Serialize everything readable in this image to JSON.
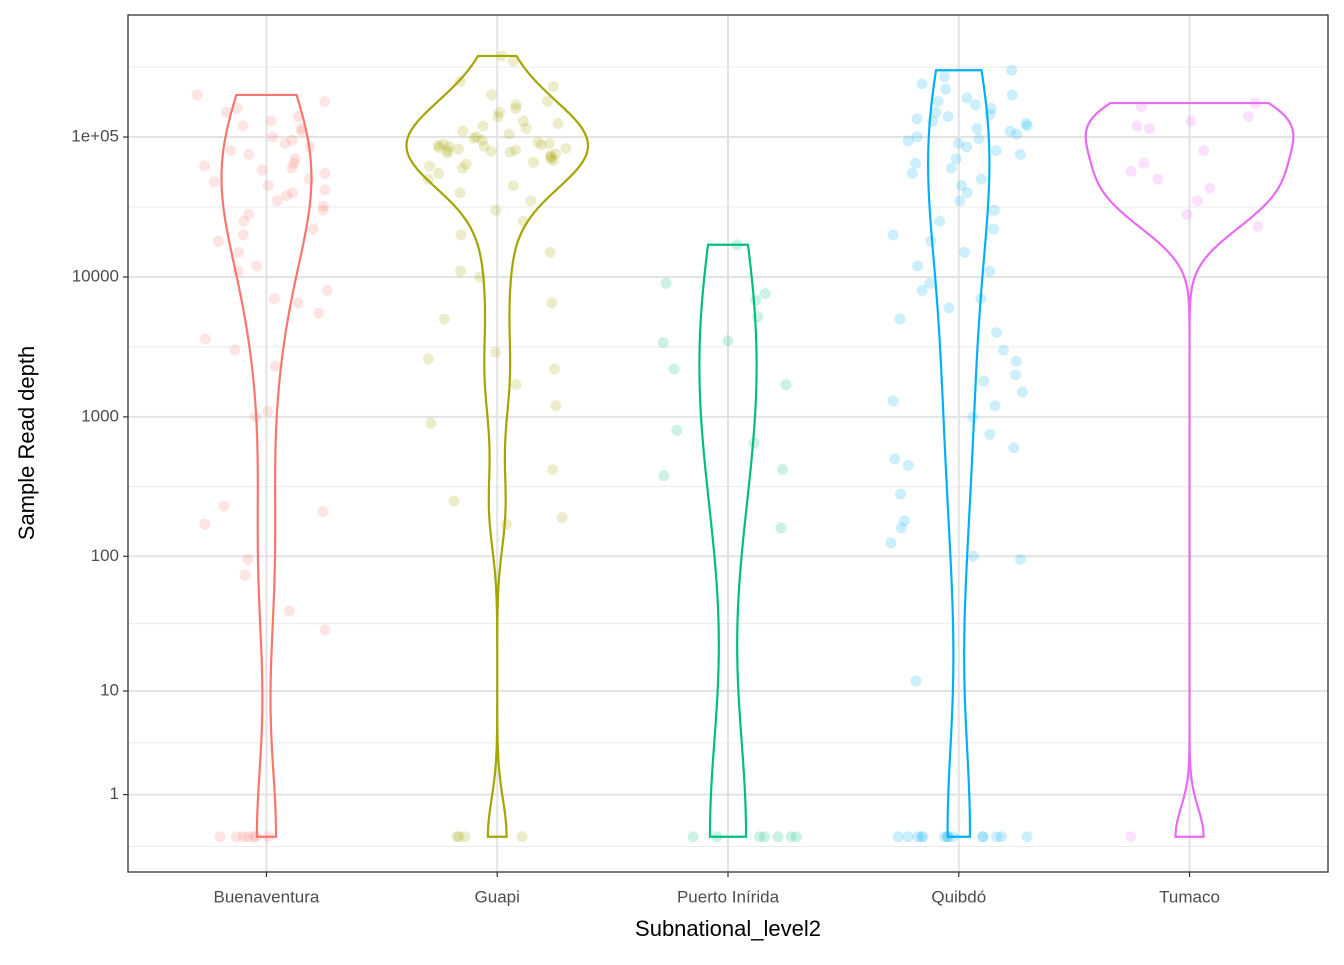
{
  "chart_data": {
    "type": "violin",
    "x_label": "Subnational_level2",
    "y_label": "Sample Read depth",
    "y_scale": "pseudo_log",
    "grid": true,
    "ylim": [
      -0.44,
      745000
    ],
    "yticks": [
      1,
      10,
      100,
      1000,
      10000,
      {
        "value": 100000,
        "label": "1e+05"
      }
    ],
    "series": [
      {
        "name": "Buenaventura",
        "color": "#F8766D",
        "values": [
          200000,
          180000,
          160000,
          150000,
          140000,
          130000,
          120000,
          115000,
          110000,
          100000,
          95000,
          90000,
          85000,
          80000,
          75000,
          70000,
          65000,
          62000,
          60000,
          58000,
          55000,
          50000,
          48000,
          45000,
          42000,
          40000,
          38000,
          35000,
          32000,
          30000,
          28000,
          25000,
          22000,
          20000,
          18000,
          15000,
          12000,
          11000,
          8000,
          7000,
          6500,
          5500,
          3600,
          3000,
          2300,
          1100,
          1000,
          230,
          210,
          170,
          95,
          73,
          40,
          29,
          0,
          0,
          0,
          0,
          0,
          0,
          0
        ]
      },
      {
        "name": "Guapi",
        "color": "#A3A500",
        "values": [
          380000,
          350000,
          250000,
          230000,
          200000,
          180000,
          170000,
          160000,
          150000,
          140000,
          130000,
          125000,
          120000,
          115000,
          110000,
          105000,
          100000,
          98000,
          95000,
          92000,
          90000,
          89000,
          88000,
          87000,
          86000,
          85000,
          84000,
          83000,
          82000,
          81000,
          80000,
          79000,
          78000,
          77000,
          76000,
          74000,
          72000,
          70000,
          68000,
          66000,
          64000,
          62000,
          60000,
          55000,
          50000,
          45000,
          40000,
          35000,
          30000,
          25000,
          20000,
          15000,
          11000,
          10000,
          6500,
          5000,
          2900,
          2600,
          2200,
          1700,
          1200,
          900,
          420,
          250,
          190,
          170,
          0,
          0,
          0,
          0
        ]
      },
      {
        "name": "Puerto Inírida",
        "color": "#00BF7D",
        "values": [
          17000,
          9000,
          7600,
          6800,
          5200,
          3500,
          3400,
          2200,
          1700,
          800,
          650,
          420,
          380,
          160,
          0,
          0,
          0,
          0,
          0,
          0,
          0
        ]
      },
      {
        "name": "Quibdó",
        "color": "#00B0F6",
        "values": [
          300000,
          270000,
          240000,
          220000,
          200000,
          190000,
          180000,
          170000,
          160000,
          150000,
          145000,
          140000,
          135000,
          130000,
          125000,
          120000,
          115000,
          110000,
          105000,
          100000,
          97000,
          94000,
          90000,
          85000,
          80000,
          75000,
          70000,
          65000,
          60000,
          55000,
          50000,
          45000,
          40000,
          35000,
          30000,
          25000,
          22000,
          20000,
          18000,
          15000,
          12000,
          11000,
          9000,
          8000,
          7000,
          6000,
          5000,
          4000,
          3000,
          2500,
          2000,
          1800,
          1500,
          1300,
          1200,
          1000,
          750,
          600,
          500,
          450,
          280,
          180,
          160,
          125,
          100,
          95,
          12,
          0,
          0,
          0,
          0,
          0,
          0,
          0,
          0,
          0,
          0,
          0,
          0,
          0,
          0
        ]
      },
      {
        "name": "Tumaco",
        "color": "#E76BF3",
        "values": [
          175000,
          165000,
          140000,
          130000,
          120000,
          115000,
          80000,
          65000,
          57000,
          50000,
          43000,
          35000,
          28000,
          23000,
          0
        ]
      }
    ]
  }
}
